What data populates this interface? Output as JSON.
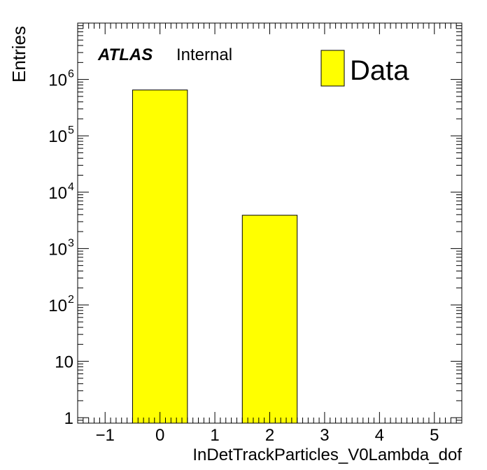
{
  "chart_data": {
    "type": "bar",
    "xlabel": "InDetTrackParticles_V0Lambda_dof",
    "ylabel": "Entries",
    "xlim": [
      -1.5,
      5.5
    ],
    "ylim": [
      0.8,
      10000000
    ],
    "yscale": "log",
    "grid": false,
    "legend_position": "top-right",
    "x_ticks": [
      "−1",
      "0",
      "1",
      "2",
      "3",
      "4",
      "5"
    ],
    "y_ticks": [
      {
        "base": "1",
        "exp": ""
      },
      {
        "base": "10",
        "exp": ""
      },
      {
        "base": "10",
        "exp": "2"
      },
      {
        "base": "10",
        "exp": "3"
      },
      {
        "base": "10",
        "exp": "4"
      },
      {
        "base": "10",
        "exp": "5"
      },
      {
        "base": "10",
        "exp": "6"
      }
    ],
    "bins": [
      {
        "low": -0.5,
        "high": 0.5,
        "value": 650000
      },
      {
        "low": 1.5,
        "high": 2.5,
        "value": 3900
      }
    ],
    "series": [
      {
        "name": "Data",
        "color": "#ffff00"
      }
    ],
    "annotation": {
      "experiment": "ATLAS",
      "status": "Internal"
    }
  }
}
